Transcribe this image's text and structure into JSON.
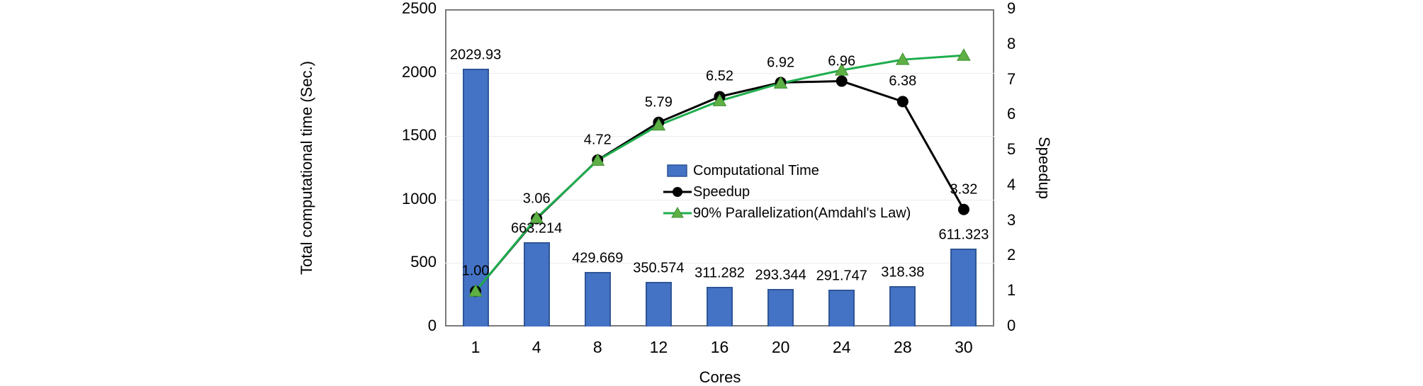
{
  "chart_data": {
    "type": "combo-bar-line",
    "title": "",
    "xlabel": "Cores",
    "ylabel_left": "Total computational time (Sec.)",
    "ylabel_right": "Speedup",
    "categories": [
      "1",
      "4",
      "8",
      "12",
      "16",
      "20",
      "24",
      "28",
      "30"
    ],
    "series": [
      {
        "name": "Computational Time",
        "type": "bar",
        "axis": "left",
        "marker": "square",
        "color": "#4472c4",
        "border_color": "#2f5597",
        "values": [
          2029.93,
          663.214,
          429.669,
          350.574,
          311.282,
          293.344,
          291.747,
          318.38,
          611.323
        ],
        "labels": [
          "2029.93",
          "663.214",
          "429.669",
          "350.574",
          "311.282",
          "293.344",
          "291.747",
          "318.38",
          "611.323"
        ]
      },
      {
        "name": "Speedup",
        "type": "line",
        "axis": "right",
        "marker": "circle",
        "color": "#000000",
        "values": [
          1.0,
          3.06,
          4.72,
          5.79,
          6.52,
          6.92,
          6.96,
          6.38,
          3.32
        ],
        "labels": [
          "1.00",
          "3.06",
          "4.72",
          "5.79",
          "6.52",
          "6.92",
          "6.96",
          "6.38",
          "3.32"
        ]
      },
      {
        "name": "90% Parallelization(Amdahl's Law)",
        "type": "line",
        "axis": "right",
        "marker": "triangle",
        "color": "#1fad4e",
        "marker_fill": "#5fb044",
        "marker_stroke": "#3f8f35",
        "values": [
          1.0,
          3.08,
          4.71,
          5.71,
          6.4,
          6.9,
          7.27,
          7.57,
          7.69
        ],
        "labels": []
      }
    ],
    "axes": {
      "left": {
        "min": 0,
        "max": 2500,
        "ticks": [
          "0",
          "500",
          "1000",
          "1500",
          "2000",
          "2500"
        ]
      },
      "right": {
        "min": 0,
        "max": 9,
        "ticks": [
          "0",
          "1",
          "2",
          "3",
          "4",
          "5",
          "6",
          "7",
          "8",
          "9"
        ]
      }
    },
    "legend_position": "inside-right-middle",
    "grid": "horizontal-faint"
  },
  "colors": {
    "plot_border": "#7a7a7a",
    "gridline": "#ececec",
    "background": "#ffffff",
    "text": "#000000"
  }
}
